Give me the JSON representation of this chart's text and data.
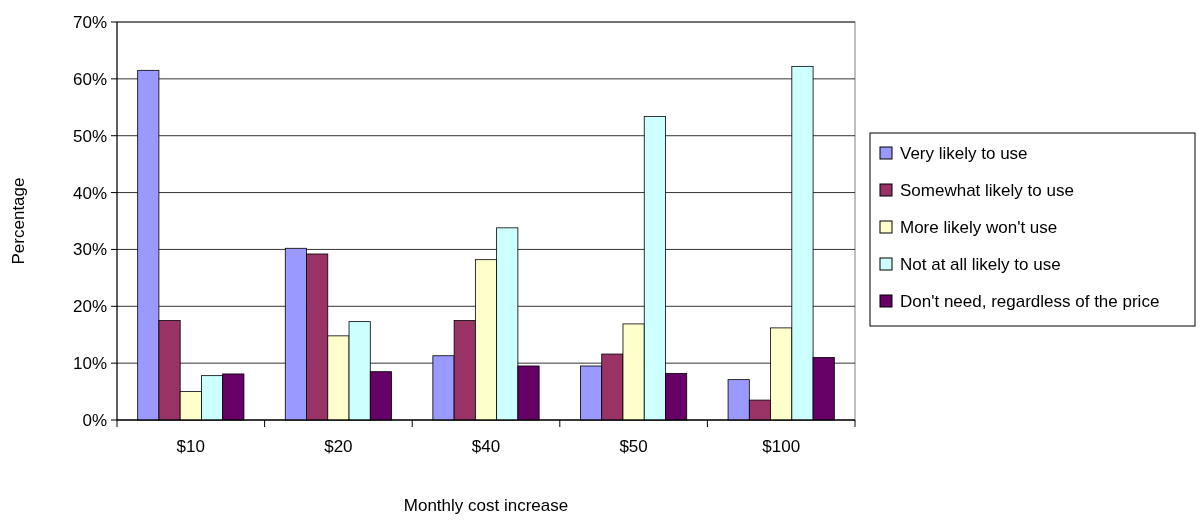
{
  "chart_data": {
    "type": "bar",
    "xlabel": "Monthly cost increase",
    "ylabel": "Percentage",
    "categories": [
      "$10",
      "$20",
      "$40",
      "$50",
      "$100"
    ],
    "series": [
      {
        "name": "Very likely to use",
        "color": "#9999ff",
        "values": [
          61.5,
          30.2,
          11.3,
          9.5,
          7.1
        ]
      },
      {
        "name": "Somewhat likely to use",
        "color": "#993366",
        "values": [
          17.5,
          29.2,
          17.5,
          11.6,
          3.5
        ]
      },
      {
        "name": "More likely won't use",
        "color": "#ffffcc",
        "values": [
          5,
          14.8,
          28.2,
          16.9,
          16.2
        ]
      },
      {
        "name": "Not at all likely to use",
        "color": "#ccffff",
        "values": [
          7.8,
          17.3,
          33.8,
          53.4,
          62.2
        ]
      },
      {
        "name": "Don't need, regardless of the price",
        "color": "#660066",
        "values": [
          8.1,
          8.5,
          9.5,
          8.2,
          11
        ]
      }
    ],
    "ylim": [
      0,
      70
    ],
    "yticks": [
      {
        "value": 0,
        "label": "0%"
      },
      {
        "value": 10,
        "label": "10%"
      },
      {
        "value": 20,
        "label": "20%"
      },
      {
        "value": 30,
        "label": "30%"
      },
      {
        "value": 40,
        "label": "40%"
      },
      {
        "value": 50,
        "label": "50%"
      },
      {
        "value": 60,
        "label": "60%"
      },
      {
        "value": 70,
        "label": "70%"
      }
    ],
    "grid": "y",
    "legend": "right"
  }
}
